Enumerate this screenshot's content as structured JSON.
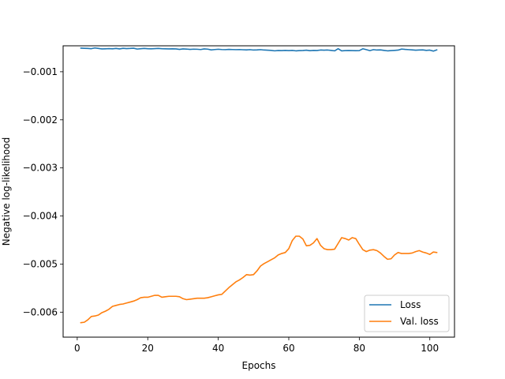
{
  "chart_data": {
    "type": "line",
    "title": "",
    "xlabel": "Epochs",
    "ylabel": "Negative log-likelihood",
    "xlim": [
      -4,
      107
    ],
    "ylim": [
      -0.00652,
      -0.00046
    ],
    "xticks": [
      0,
      20,
      40,
      60,
      80,
      100
    ],
    "yticks": [
      -0.001,
      -0.002,
      -0.003,
      -0.004,
      -0.005,
      -0.006
    ],
    "ytick_labels": [
      "−0.001",
      "−0.002",
      "−0.003",
      "−0.004",
      "−0.005",
      "−0.006"
    ],
    "xtick_labels": [
      "0",
      "20",
      "40",
      "60",
      "80",
      "100"
    ],
    "grid": false,
    "legend_position": "bottom-right",
    "series": [
      {
        "name": "Loss",
        "color": "#1f77b4",
        "x": [
          1,
          2,
          3,
          4,
          5,
          6,
          7,
          8,
          9,
          10,
          11,
          12,
          13,
          14,
          15,
          16,
          17,
          18,
          19,
          20,
          21,
          22,
          23,
          24,
          25,
          26,
          27,
          28,
          29,
          30,
          31,
          32,
          33,
          34,
          35,
          36,
          37,
          38,
          39,
          40,
          41,
          42,
          43,
          44,
          45,
          46,
          47,
          48,
          49,
          50,
          51,
          52,
          53,
          54,
          55,
          56,
          57,
          58,
          59,
          60,
          61,
          62,
          63,
          64,
          65,
          66,
          67,
          68,
          69,
          70,
          71,
          72,
          73,
          74,
          75,
          76,
          77,
          78,
          79,
          80,
          81,
          82,
          83,
          84,
          85,
          86,
          87,
          88,
          89,
          90,
          91,
          92,
          93,
          94,
          95,
          96,
          97,
          98,
          99,
          100,
          101,
          102
        ],
        "y": [
          -0.000508,
          -0.000512,
          -0.000515,
          -0.00052,
          -0.000505,
          -0.000515,
          -0.000525,
          -0.000522,
          -0.000518,
          -0.000522,
          -0.000515,
          -0.000525,
          -0.000512,
          -0.000518,
          -0.000515,
          -0.00051,
          -0.000528,
          -0.00052,
          -0.000515,
          -0.00052,
          -0.000522,
          -0.000518,
          -0.000515,
          -0.00052,
          -0.000522,
          -0.000525,
          -0.000522,
          -0.000525,
          -0.000535,
          -0.000525,
          -0.000528,
          -0.000535,
          -0.00053,
          -0.000532,
          -0.000538,
          -0.000525,
          -0.00053,
          -0.000545,
          -0.000538,
          -0.000532,
          -0.000538,
          -0.00054,
          -0.000535,
          -0.000538,
          -0.00054,
          -0.000538,
          -0.000542,
          -0.000545,
          -0.00054,
          -0.000548,
          -0.000545,
          -0.00054,
          -0.000548,
          -0.000552,
          -0.000555,
          -0.000565,
          -0.000558,
          -0.00056,
          -0.000555,
          -0.00056,
          -0.000555,
          -0.000565,
          -0.00056,
          -0.000558,
          -0.000552,
          -0.000562,
          -0.000555,
          -0.000558,
          -0.000548,
          -0.000552,
          -0.000548,
          -0.000555,
          -0.000565,
          -0.00052,
          -0.000565,
          -0.00056,
          -0.000558,
          -0.00056,
          -0.000562,
          -0.00056,
          -0.000522,
          -0.00054,
          -0.00056,
          -0.00054,
          -0.000548,
          -0.000545,
          -0.000555,
          -0.000565,
          -0.00056,
          -0.000555,
          -0.00055,
          -0.000528,
          -0.000535,
          -0.00054,
          -0.000545,
          -0.000552,
          -0.000548,
          -0.000545,
          -0.000555,
          -0.00055,
          -0.00057,
          -0.000545
        ]
      },
      {
        "name": "Val. loss",
        "color": "#ff7f0e",
        "x": [
          1,
          2,
          3,
          4,
          5,
          6,
          7,
          8,
          9,
          10,
          11,
          12,
          13,
          14,
          15,
          16,
          17,
          18,
          19,
          20,
          21,
          22,
          23,
          24,
          25,
          26,
          27,
          28,
          29,
          30,
          31,
          32,
          33,
          34,
          35,
          36,
          37,
          38,
          39,
          40,
          41,
          42,
          43,
          44,
          45,
          46,
          47,
          48,
          49,
          50,
          51,
          52,
          53,
          54,
          55,
          56,
          57,
          58,
          59,
          60,
          61,
          62,
          63,
          64,
          65,
          66,
          67,
          68,
          69,
          70,
          71,
          72,
          73,
          74,
          75,
          76,
          77,
          78,
          79,
          80,
          81,
          82,
          83,
          84,
          85,
          86,
          87,
          88,
          89,
          90,
          91,
          92,
          93,
          94,
          95,
          96,
          97,
          98,
          99,
          100,
          101,
          102
        ],
        "y": [
          -0.00622,
          -0.00621,
          -0.00616,
          -0.00609,
          -0.00608,
          -0.00606,
          -0.00601,
          -0.00598,
          -0.00594,
          -0.00588,
          -0.00586,
          -0.00584,
          -0.00583,
          -0.00581,
          -0.00579,
          -0.00577,
          -0.00574,
          -0.0057,
          -0.00569,
          -0.00569,
          -0.00567,
          -0.00565,
          -0.00565,
          -0.00569,
          -0.00568,
          -0.00567,
          -0.00567,
          -0.00567,
          -0.00568,
          -0.00572,
          -0.00574,
          -0.00573,
          -0.00572,
          -0.00571,
          -0.00571,
          -0.00571,
          -0.0057,
          -0.00568,
          -0.00566,
          -0.00564,
          -0.00563,
          -0.00556,
          -0.00549,
          -0.00543,
          -0.00537,
          -0.00533,
          -0.00528,
          -0.00522,
          -0.00523,
          -0.00522,
          -0.00514,
          -0.00504,
          -0.00499,
          -0.00495,
          -0.00491,
          -0.00487,
          -0.00481,
          -0.00478,
          -0.00476,
          -0.00468,
          -0.00451,
          -0.00442,
          -0.00442,
          -0.00448,
          -0.00462,
          -0.00461,
          -0.00456,
          -0.00447,
          -0.00461,
          -0.00468,
          -0.0047,
          -0.0047,
          -0.00469,
          -0.00457,
          -0.00445,
          -0.00447,
          -0.0045,
          -0.00445,
          -0.00447,
          -0.00459,
          -0.0047,
          -0.00474,
          -0.00471,
          -0.0047,
          -0.00472,
          -0.00477,
          -0.00484,
          -0.0049,
          -0.00489,
          -0.00481,
          -0.00476,
          -0.00478,
          -0.00478,
          -0.00478,
          -0.00477,
          -0.00474,
          -0.00472,
          -0.00475,
          -0.00477,
          -0.0048,
          -0.00475,
          -0.00476
        ]
      }
    ]
  }
}
